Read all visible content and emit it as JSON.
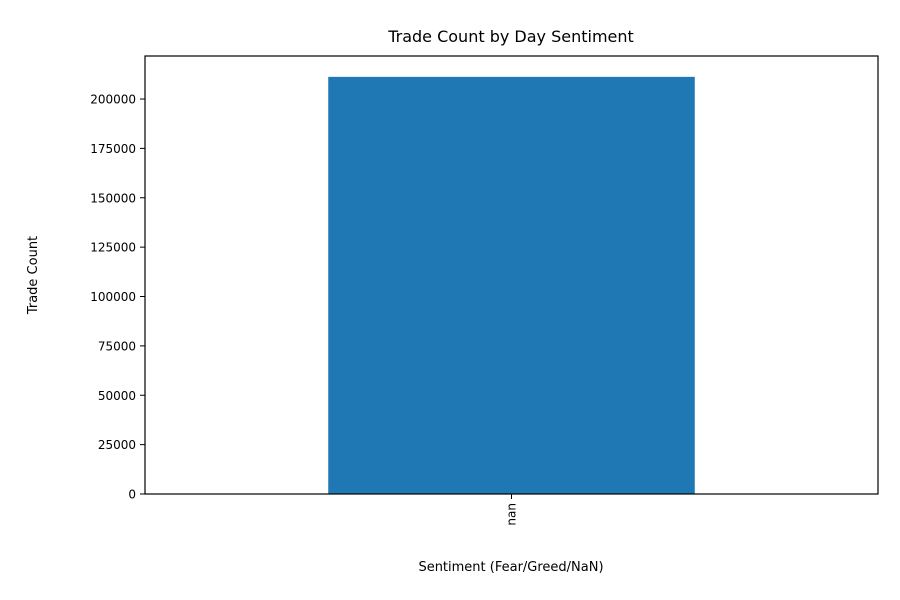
{
  "chart_data": {
    "type": "bar",
    "title": "Trade Count by Day Sentiment",
    "xlabel": "Sentiment (Fear/Greed/NaN)",
    "ylabel": "Trade Count",
    "categories": [
      "nan"
    ],
    "values": [
      211224
    ],
    "ylim": [
      0,
      221785
    ],
    "yticks": [
      0,
      25000,
      50000,
      75000,
      100000,
      125000,
      150000,
      175000,
      200000
    ],
    "bar_color": "#1f77b4",
    "grid": false,
    "legend": "none"
  }
}
